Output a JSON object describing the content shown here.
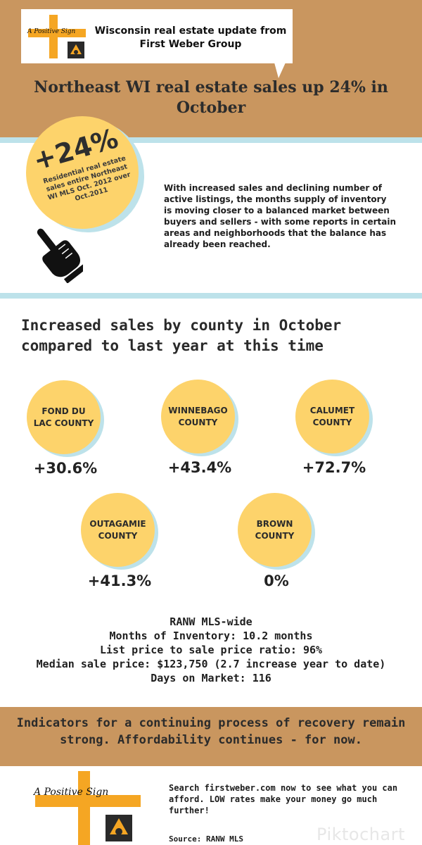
{
  "header": {
    "logo_text": "A Positive Sign",
    "bubble_text": "Wisconsin real estate update from First Weber Group",
    "headline": "Northeast WI real estate sales up 24% in October"
  },
  "highlight": {
    "percent": "+24%",
    "caption": "Residential real estate sales entire Northeast WI MLS Oct. 2012 over Oct.2011",
    "intro": "With increased sales and declining number of active listings, the months supply of inventory is moving closer to a balanced market between buyers and sellers - with some reports in certain areas and neighborhoods that the balance has already been reached."
  },
  "counties": {
    "title": "Increased sales by county in October compared to last year at this time",
    "items": [
      {
        "name": "FOND DU LAC COUNTY",
        "change": "+30.6%"
      },
      {
        "name": "WINNEBAGO COUNTY",
        "change": "+43.4%"
      },
      {
        "name": "CALUMET COUNTY",
        "change": "+72.7%"
      },
      {
        "name": "OUTAGAMIE COUNTY",
        "change": "+41.3%"
      },
      {
        "name": "BROWN COUNTY",
        "change": "0%"
      }
    ]
  },
  "stats": {
    "heading": "RANW MLS-wide",
    "months_inventory": "Months of Inventory: 10.2 months",
    "list_ratio": "List price to sale price ratio: 96%",
    "median_price": "Median sale price: $123,750 (2.7 increase year to date)",
    "days_on_market": "Days on Market: 116"
  },
  "footer": {
    "band_text": "Indicators for a continuing process of recovery remain strong.  Affordability continues - for now.",
    "logo_text": "A Positive Sign",
    "cta": "Search firstweber.com now to see what you can afford. LOW rates make your money go much further!",
    "source": "Source: RANW MLS",
    "watermark": "Piktochart"
  },
  "colors": {
    "tan": "#c9965f",
    "yellow": "#fdd36b",
    "light_blue": "#bde2ea",
    "orange_cross": "#f5a623",
    "logo_tile": "#2a2a2a"
  },
  "icons": [
    "plus-sign-logo-icon",
    "pointing-hand-icon"
  ]
}
